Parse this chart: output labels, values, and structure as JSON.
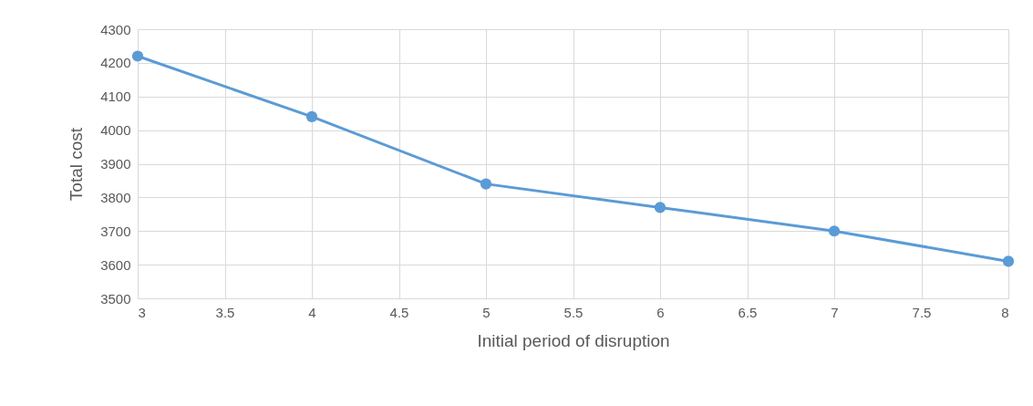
{
  "chart_data": {
    "type": "line",
    "xlabel": "Initial period of disruption",
    "ylabel": "Total cost",
    "x": [
      3,
      4,
      5,
      6,
      7,
      8
    ],
    "series": [
      {
        "color": "#5b9bd5",
        "values": [
          4220,
          4040,
          3840,
          3770,
          3700,
          3610
        ]
      }
    ],
    "xlim": [
      3,
      8
    ],
    "xticks": [
      3,
      3.5,
      4,
      4.5,
      5,
      5.5,
      6,
      6.5,
      7,
      7.5,
      8
    ],
    "ylim": [
      3500,
      4300
    ],
    "yticks": [
      3500,
      3600,
      3700,
      3800,
      3900,
      4000,
      4100,
      4200,
      4300
    ],
    "grid": true,
    "marker": "circle",
    "line_style": "solid"
  }
}
